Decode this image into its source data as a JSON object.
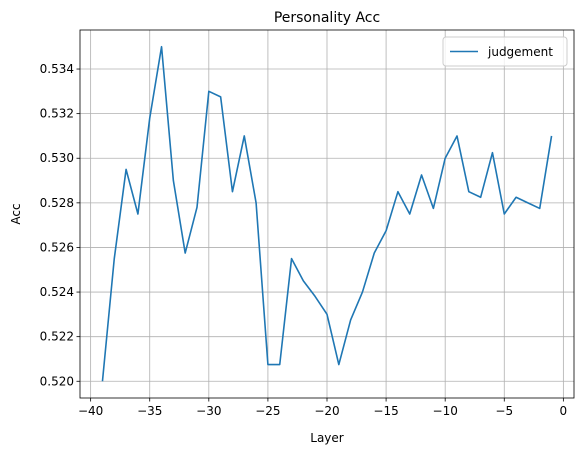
{
  "chart_data": {
    "type": "line",
    "title": "Personality Acc",
    "xlabel": "Layer",
    "ylabel": "Acc",
    "xlim": [
      -40.9,
      0.9
    ],
    "ylim": [
      0.51925,
      0.53575
    ],
    "xticks": [
      -40,
      -35,
      -30,
      -25,
      -20,
      -15,
      -10,
      -5,
      0
    ],
    "yticks": [
      0.52,
      0.522,
      0.524,
      0.526,
      0.528,
      0.53,
      0.532,
      0.534
    ],
    "grid": true,
    "legend_position": "top-right",
    "colors": {
      "series": "#1f77b4",
      "grid": "#b0b0b0",
      "axes": "#000000"
    },
    "series": [
      {
        "name": "judgement",
        "x": [
          -39,
          -38,
          -37,
          -36,
          -35,
          -34,
          -33,
          -32,
          -31,
          -30,
          -29,
          -28,
          -27,
          -26,
          -25,
          -24,
          -23,
          -22,
          -21,
          -20,
          -19,
          -18,
          -17,
          -16,
          -15,
          -14,
          -13,
          -12,
          -11,
          -10,
          -9,
          -8,
          -7,
          -6,
          -5,
          -4,
          -3,
          -2,
          -1
        ],
        "y": [
          0.52,
          0.5255,
          0.5295,
          0.5275,
          0.5318,
          0.535,
          0.529,
          0.52575,
          0.5278,
          0.533,
          0.53275,
          0.5285,
          0.531,
          0.528,
          0.52075,
          0.52075,
          0.5255,
          0.5245,
          0.5238,
          0.523,
          0.52075,
          0.52275,
          0.524,
          0.52575,
          0.52675,
          0.5285,
          0.5275,
          0.52925,
          0.52775,
          0.53,
          0.531,
          0.5285,
          0.52825,
          0.53025,
          0.5275,
          0.52825,
          0.528,
          0.52775,
          0.531
        ]
      }
    ]
  }
}
